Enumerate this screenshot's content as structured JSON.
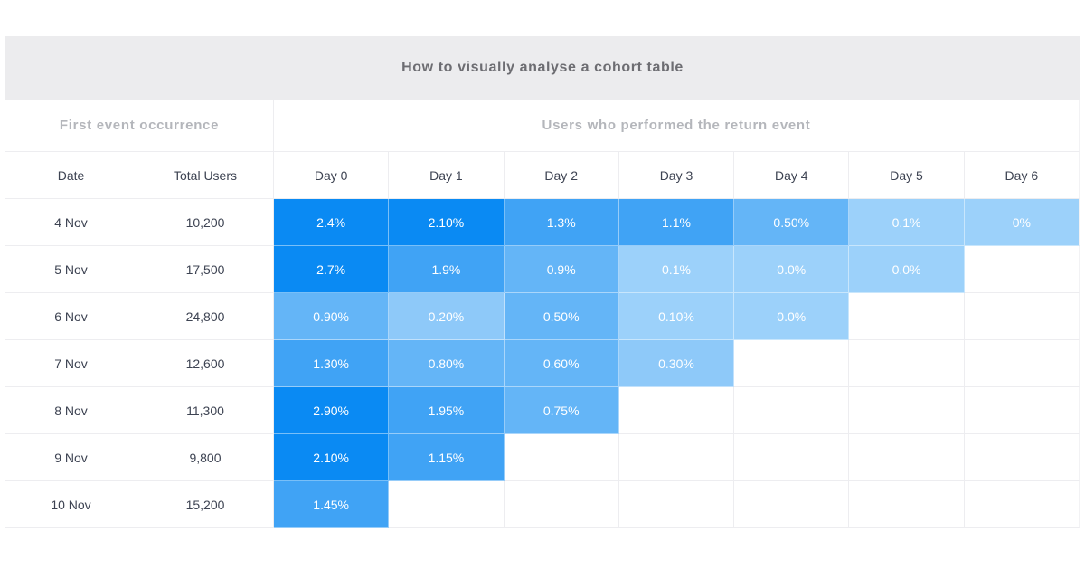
{
  "title": "How to visually analyse a cohort table",
  "sections": {
    "left": "First event occurrence",
    "right": "Users who performed the return event"
  },
  "columns": {
    "date": "Date",
    "total_users": "Total Users",
    "days": [
      "Day 0",
      "Day 1",
      "Day 2",
      "Day 3",
      "Day 4",
      "Day 5",
      "Day 6"
    ]
  },
  "palette": {
    "1": "#0a8af3",
    "2": "#40a3f5",
    "3": "#64b5f7",
    "4": "#8ec9f9",
    "5": "#9cd1fa"
  },
  "colors": {
    "page_bg": "#ffffff",
    "title_bg": "#ececee",
    "title_text": "#6d6d72",
    "section_text": "#b4b6bb",
    "header_text": "#3d4352",
    "cell_text": "#3d4352",
    "value_text": "#ffffff",
    "border": "#ededf0"
  },
  "rows": [
    {
      "date": "4 Nov",
      "total": "10,200",
      "days": [
        {
          "v": "2.4%",
          "l": 1
        },
        {
          "v": "2.10%",
          "l": 1
        },
        {
          "v": "1.3%",
          "l": 2
        },
        {
          "v": "1.1%",
          "l": 2
        },
        {
          "v": "0.50%",
          "l": 3
        },
        {
          "v": "0.1%",
          "l": 5
        },
        {
          "v": "0%",
          "l": 5
        }
      ]
    },
    {
      "date": "5 Nov",
      "total": "17,500",
      "days": [
        {
          "v": "2.7%",
          "l": 1
        },
        {
          "v": "1.9%",
          "l": 2
        },
        {
          "v": "0.9%",
          "l": 3
        },
        {
          "v": "0.1%",
          "l": 5
        },
        {
          "v": "0.0%",
          "l": 5
        },
        {
          "v": "0.0%",
          "l": 5
        },
        null
      ]
    },
    {
      "date": "6 Nov",
      "total": "24,800",
      "days": [
        {
          "v": "0.90%",
          "l": 3
        },
        {
          "v": "0.20%",
          "l": 4
        },
        {
          "v": "0.50%",
          "l": 3
        },
        {
          "v": "0.10%",
          "l": 5
        },
        {
          "v": "0.0%",
          "l": 5
        },
        null,
        null
      ]
    },
    {
      "date": "7 Nov",
      "total": "12,600",
      "days": [
        {
          "v": "1.30%",
          "l": 2
        },
        {
          "v": "0.80%",
          "l": 3
        },
        {
          "v": "0.60%",
          "l": 3
        },
        {
          "v": "0.30%",
          "l": 4
        },
        null,
        null,
        null
      ]
    },
    {
      "date": "8 Nov",
      "total": "11,300",
      "days": [
        {
          "v": "2.90%",
          "l": 1
        },
        {
          "v": "1.95%",
          "l": 2
        },
        {
          "v": "0.75%",
          "l": 3
        },
        null,
        null,
        null,
        null
      ]
    },
    {
      "date": "9 Nov",
      "total": "9,800",
      "days": [
        {
          "v": "2.10%",
          "l": 1
        },
        {
          "v": "1.15%",
          "l": 2
        },
        null,
        null,
        null,
        null,
        null
      ]
    },
    {
      "date": "10 Nov",
      "total": "15,200",
      "days": [
        {
          "v": "1.45%",
          "l": 2
        },
        null,
        null,
        null,
        null,
        null,
        null
      ]
    }
  ],
  "chart_data": {
    "type": "heatmap",
    "title": "How to visually analyse a cohort table",
    "row_labels": [
      "4 Nov",
      "5 Nov",
      "6 Nov",
      "7 Nov",
      "8 Nov",
      "9 Nov",
      "10 Nov"
    ],
    "row_totals": [
      10200,
      17500,
      24800,
      12600,
      11300,
      9800,
      15200
    ],
    "col_labels": [
      "Day 0",
      "Day 1",
      "Day 2",
      "Day 3",
      "Day 4",
      "Day 5",
      "Day 6"
    ],
    "values_pct": [
      [
        2.4,
        2.1,
        1.3,
        1.1,
        0.5,
        0.1,
        0
      ],
      [
        2.7,
        1.9,
        0.9,
        0.1,
        0.0,
        0.0,
        null
      ],
      [
        0.9,
        0.2,
        0.5,
        0.1,
        0.0,
        null,
        null
      ],
      [
        1.3,
        0.8,
        0.6,
        0.3,
        null,
        null,
        null
      ],
      [
        2.9,
        1.95,
        0.75,
        null,
        null,
        null,
        null
      ],
      [
        2.1,
        1.15,
        null,
        null,
        null,
        null,
        null
      ],
      [
        1.45,
        null,
        null,
        null,
        null,
        null,
        null
      ]
    ],
    "legend_position": "none",
    "grid": true,
    "color_scale": "higher % = darker blue"
  }
}
